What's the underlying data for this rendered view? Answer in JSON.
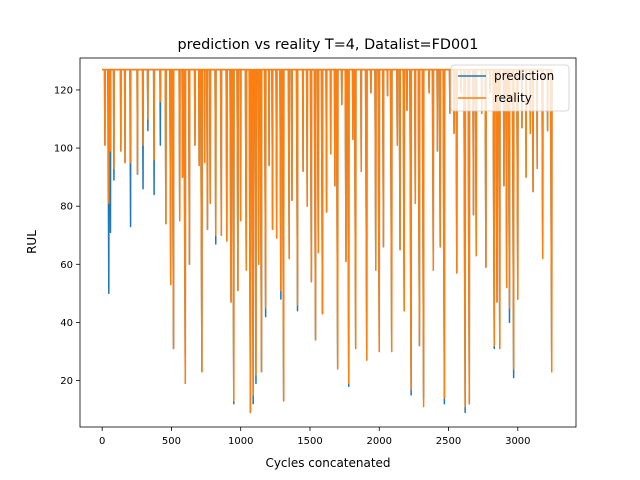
{
  "chart_data": {
    "type": "line",
    "title": "prediction vs reality T=4, Datalist=FD001",
    "xlabel": "Cycles concatenated",
    "ylabel": "RUL",
    "xlim": [
      -160,
      3420
    ],
    "ylim": [
      4,
      131
    ],
    "x_ticks": [
      0,
      500,
      1000,
      1500,
      2000,
      2500,
      3000
    ],
    "y_ticks": [
      20,
      40,
      60,
      80,
      100,
      120
    ],
    "x_tick_labels": [
      "0",
      "500",
      "1000",
      "1500",
      "2000",
      "2500",
      "3000"
    ],
    "y_tick_labels": [
      "20",
      "40",
      "60",
      "80",
      "100",
      "120"
    ],
    "grid": false,
    "legend_position": "top-right",
    "x_max": 3247,
    "cap": 127,
    "series": [
      {
        "name": "prediction",
        "color": "#1f77b4",
        "dips": [
          [
            20,
            101
          ],
          [
            48,
            50
          ],
          [
            60,
            71
          ],
          [
            85,
            89
          ],
          [
            135,
            99
          ],
          [
            165,
            95
          ],
          [
            205,
            73
          ],
          [
            255,
            91
          ],
          [
            295,
            86
          ],
          [
            330,
            106
          ],
          [
            375,
            84
          ],
          [
            420,
            101
          ],
          [
            460,
            74
          ],
          [
            495,
            53
          ],
          [
            515,
            31
          ],
          [
            560,
            75
          ],
          [
            580,
            90
          ],
          [
            600,
            19
          ],
          [
            630,
            60
          ],
          [
            670,
            101
          ],
          [
            700,
            94
          ],
          [
            720,
            23
          ],
          [
            740,
            95
          ],
          [
            760,
            72
          ],
          [
            780,
            81
          ],
          [
            820,
            67
          ],
          [
            860,
            70
          ],
          [
            900,
            68
          ],
          [
            930,
            47
          ],
          [
            950,
            12
          ],
          [
            980,
            51
          ],
          [
            1000,
            75
          ],
          [
            1040,
            58
          ],
          [
            1070,
            9
          ],
          [
            1090,
            12
          ],
          [
            1110,
            19
          ],
          [
            1130,
            60
          ],
          [
            1150,
            23
          ],
          [
            1180,
            42
          ],
          [
            1205,
            94
          ],
          [
            1230,
            72
          ],
          [
            1260,
            69
          ],
          [
            1290,
            48
          ],
          [
            1310,
            13
          ],
          [
            1350,
            62
          ],
          [
            1370,
            82
          ],
          [
            1410,
            44
          ],
          [
            1450,
            92
          ],
          [
            1480,
            80
          ],
          [
            1510,
            54
          ],
          [
            1540,
            34
          ],
          [
            1560,
            64
          ],
          [
            1590,
            43
          ],
          [
            1620,
            78
          ],
          [
            1650,
            98
          ],
          [
            1680,
            87
          ],
          [
            1700,
            24
          ],
          [
            1730,
            115
          ],
          [
            1760,
            61
          ],
          [
            1780,
            18
          ],
          [
            1810,
            103
          ],
          [
            1830,
            31
          ],
          [
            1870,
            92
          ],
          [
            1910,
            27
          ],
          [
            1940,
            119
          ],
          [
            1975,
            58
          ],
          [
            2000,
            30
          ],
          [
            2030,
            66
          ],
          [
            2060,
            118
          ],
          [
            2090,
            30
          ],
          [
            2130,
            101
          ],
          [
            2150,
            65
          ],
          [
            2180,
            44
          ],
          [
            2200,
            113
          ],
          [
            2230,
            15
          ],
          [
            2260,
            81
          ],
          [
            2290,
            32
          ],
          [
            2320,
            14
          ],
          [
            2360,
            119
          ],
          [
            2390,
            58
          ],
          [
            2420,
            99
          ],
          [
            2440,
            66
          ],
          [
            2470,
            12
          ],
          [
            2510,
            112
          ],
          [
            2540,
            105
          ],
          [
            2560,
            57
          ],
          [
            2590,
            119
          ],
          [
            2620,
            9
          ],
          [
            2650,
            12
          ],
          [
            2680,
            77
          ],
          [
            2700,
            63
          ],
          [
            2740,
            112
          ],
          [
            2770,
            59
          ],
          [
            2800,
            119
          ],
          [
            2830,
            31
          ],
          [
            2850,
            47
          ],
          [
            2870,
            31
          ],
          [
            2900,
            87
          ],
          [
            2920,
            52
          ],
          [
            2940,
            40
          ],
          [
            2970,
            21
          ],
          [
            3000,
            48
          ],
          [
            3030,
            107
          ],
          [
            3060,
            90
          ],
          [
            3090,
            105
          ],
          [
            3110,
            85
          ],
          [
            3140,
            93
          ],
          [
            3180,
            62
          ],
          [
            3215,
            106
          ],
          [
            3245,
            23
          ]
        ]
      },
      {
        "name": "reality",
        "color": "#ff7f0e",
        "dips": [
          [
            20,
            101
          ],
          [
            48,
            81
          ],
          [
            60,
            99
          ],
          [
            85,
            93
          ],
          [
            135,
            99
          ],
          [
            165,
            95
          ],
          [
            205,
            95
          ],
          [
            255,
            91
          ],
          [
            295,
            101
          ],
          [
            330,
            110
          ],
          [
            375,
            96
          ],
          [
            420,
            116
          ],
          [
            460,
            74
          ],
          [
            495,
            53
          ],
          [
            515,
            31
          ],
          [
            560,
            75
          ],
          [
            580,
            90
          ],
          [
            600,
            19
          ],
          [
            630,
            60
          ],
          [
            670,
            101
          ],
          [
            700,
            94
          ],
          [
            720,
            23
          ],
          [
            740,
            95
          ],
          [
            760,
            72
          ],
          [
            780,
            81
          ],
          [
            820,
            70
          ],
          [
            860,
            70
          ],
          [
            900,
            68
          ],
          [
            930,
            47
          ],
          [
            950,
            13
          ],
          [
            980,
            51
          ],
          [
            1000,
            75
          ],
          [
            1040,
            58
          ],
          [
            1070,
            9
          ],
          [
            1090,
            15
          ],
          [
            1110,
            22
          ],
          [
            1130,
            60
          ],
          [
            1150,
            23
          ],
          [
            1180,
            45
          ],
          [
            1205,
            94
          ],
          [
            1230,
            72
          ],
          [
            1260,
            69
          ],
          [
            1290,
            51
          ],
          [
            1310,
            13
          ],
          [
            1350,
            62
          ],
          [
            1370,
            82
          ],
          [
            1410,
            46
          ],
          [
            1450,
            92
          ],
          [
            1480,
            80
          ],
          [
            1510,
            54
          ],
          [
            1540,
            34
          ],
          [
            1560,
            64
          ],
          [
            1590,
            43
          ],
          [
            1620,
            78
          ],
          [
            1650,
            98
          ],
          [
            1680,
            87
          ],
          [
            1700,
            24
          ],
          [
            1730,
            115
          ],
          [
            1760,
            61
          ],
          [
            1780,
            19
          ],
          [
            1810,
            103
          ],
          [
            1830,
            31
          ],
          [
            1870,
            92
          ],
          [
            1910,
            27
          ],
          [
            1940,
            119
          ],
          [
            1975,
            58
          ],
          [
            2000,
            30
          ],
          [
            2030,
            66
          ],
          [
            2060,
            118
          ],
          [
            2090,
            30
          ],
          [
            2130,
            101
          ],
          [
            2150,
            65
          ],
          [
            2180,
            44
          ],
          [
            2200,
            113
          ],
          [
            2230,
            17
          ],
          [
            2260,
            81
          ],
          [
            2290,
            32
          ],
          [
            2320,
            11
          ],
          [
            2360,
            119
          ],
          [
            2390,
            58
          ],
          [
            2420,
            99
          ],
          [
            2440,
            66
          ],
          [
            2470,
            14
          ],
          [
            2510,
            112
          ],
          [
            2540,
            105
          ],
          [
            2560,
            57
          ],
          [
            2590,
            119
          ],
          [
            2620,
            11
          ],
          [
            2650,
            12
          ],
          [
            2680,
            77
          ],
          [
            2700,
            63
          ],
          [
            2740,
            112
          ],
          [
            2770,
            59
          ],
          [
            2800,
            119
          ],
          [
            2830,
            32
          ],
          [
            2850,
            47
          ],
          [
            2870,
            31
          ],
          [
            2900,
            87
          ],
          [
            2920,
            52
          ],
          [
            2940,
            45
          ],
          [
            2970,
            24
          ],
          [
            3000,
            48
          ],
          [
            3030,
            107
          ],
          [
            3060,
            90
          ],
          [
            3090,
            105
          ],
          [
            3110,
            85
          ],
          [
            3140,
            93
          ],
          [
            3180,
            62
          ],
          [
            3215,
            106
          ],
          [
            3245,
            23
          ]
        ]
      }
    ]
  }
}
